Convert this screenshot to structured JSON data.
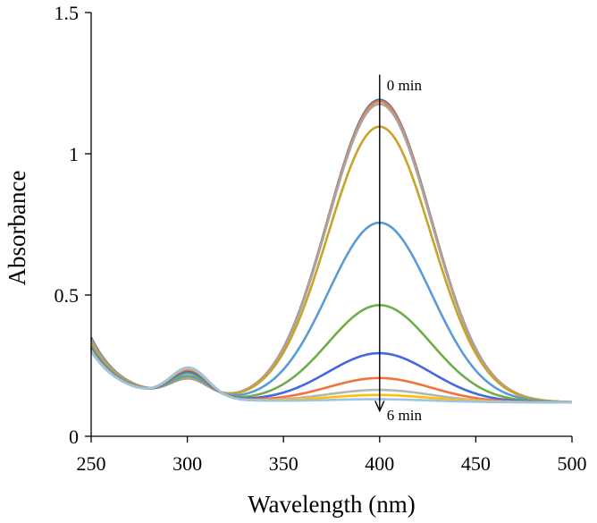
{
  "chart_data": {
    "type": "line",
    "title": "",
    "xlabel": "Wavelength (nm)",
    "ylabel": "Absorbance",
    "xlim": [
      250,
      500
    ],
    "ylim": [
      0,
      1.5
    ],
    "xticks": [
      250,
      300,
      350,
      400,
      450,
      500
    ],
    "yticks": [
      0,
      0.5,
      1,
      1.5
    ],
    "xtick_labels": [
      "250",
      "300",
      "350",
      "400",
      "450",
      "500"
    ],
    "ytick_labels": [
      "0",
      "0.5",
      "1",
      "1.5"
    ],
    "grid": false,
    "legend": "none",
    "baseline": 0.12,
    "series": [
      {
        "color": "#4472c4",
        "peak": 1.19,
        "min": 0.35,
        "valley": 0.17,
        "band300": 0.185
      },
      {
        "color": "#ed7d31",
        "peak": 1.185,
        "min": 0.345,
        "valley": 0.17,
        "band300": 0.186
      },
      {
        "color": "#a5a5a5",
        "peak": 1.175,
        "min": 0.34,
        "valley": 0.17,
        "band300": 0.187
      },
      {
        "color": "#c9a227",
        "peak": 1.095,
        "min": 0.33,
        "valley": 0.172,
        "band300": 0.19
      },
      {
        "color": "#5b9bd5",
        "peak": 0.755,
        "min": 0.32,
        "valley": 0.172,
        "band300": 0.195
      },
      {
        "color": "#70ad47",
        "peak": 0.463,
        "min": 0.315,
        "valley": 0.17,
        "band300": 0.205
      },
      {
        "color": "#4169e1",
        "peak": 0.293,
        "min": 0.31,
        "valley": 0.167,
        "band300": 0.212
      },
      {
        "color": "#f4713a",
        "peak": 0.205,
        "min": 0.305,
        "valley": 0.165,
        "band300": 0.218
      },
      {
        "color": "#b5b5b5",
        "peak": 0.163,
        "min": 0.305,
        "valley": 0.163,
        "band300": 0.222
      },
      {
        "color": "#ffc000",
        "peak": 0.145,
        "min": 0.302,
        "valley": 0.162,
        "band300": 0.224
      },
      {
        "color": "#9dc3e6",
        "peak": 0.13,
        "min": 0.3,
        "valley": 0.16,
        "band300": 0.226
      }
    ],
    "annotations": [
      {
        "text": "0 min",
        "x": 400,
        "y": 1.25
      },
      {
        "text": "6 min",
        "x": 400,
        "y": 0.12
      }
    ],
    "arrow": {
      "x": 400,
      "y_from": 1.28,
      "y_to": 0.09
    }
  }
}
